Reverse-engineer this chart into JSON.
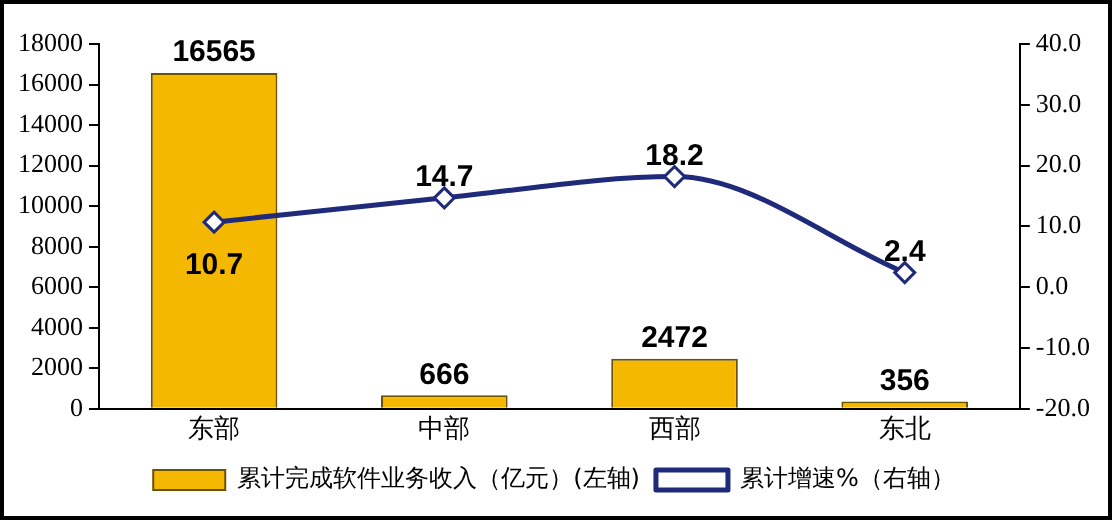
{
  "chart_data": {
    "type": "bar",
    "categories": [
      "东部",
      "中部",
      "西部",
      "东北"
    ],
    "series": [
      {
        "name": "累计完成软件业务收入（亿元）(左轴)",
        "color": "#f5b800",
        "values": [
          16565,
          666,
          2472,
          356
        ]
      },
      {
        "name": "累计增速%（右轴）",
        "type": "line",
        "axis": "y2",
        "color": "#1f2a7a",
        "values": [
          10.7,
          14.7,
          18.2,
          2.4
        ]
      }
    ],
    "ylim": [
      0,
      18000
    ],
    "yticks": [
      0,
      2000,
      4000,
      6000,
      8000,
      10000,
      12000,
      14000,
      16000,
      18000
    ],
    "y2lim": [
      -20,
      40
    ],
    "y2ticks": [
      {
        "value": -20,
        "label": "-20.0"
      },
      {
        "value": -10,
        "label": "-10.0"
      },
      {
        "value": 0,
        "label": "0.0"
      },
      {
        "value": 10,
        "label": "10.0"
      },
      {
        "value": 20,
        "label": "20.0"
      },
      {
        "value": 30,
        "label": "30.0"
      },
      {
        "value": 40,
        "label": "40.0"
      }
    ],
    "data_labels": true,
    "grid": false,
    "legend": "bottom",
    "marker": "diamond",
    "line_style": "solid"
  }
}
